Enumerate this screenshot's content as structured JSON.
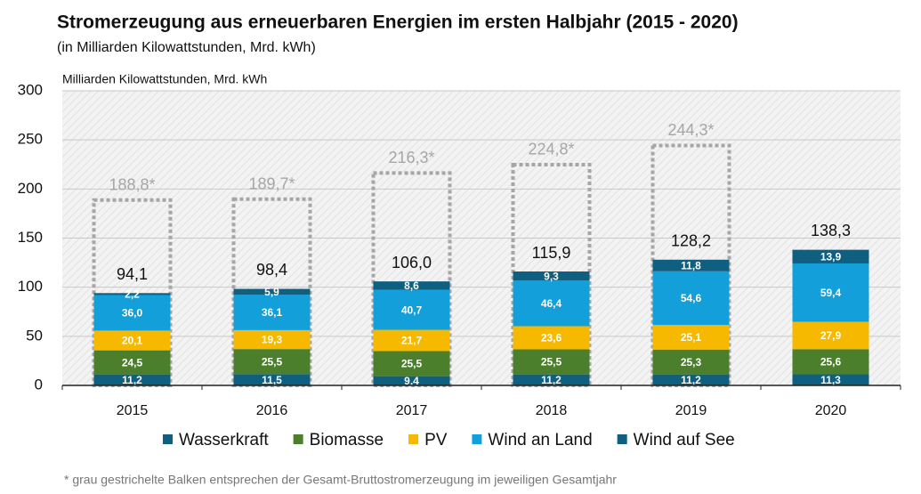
{
  "chart_data": {
    "type": "bar",
    "stacked": true,
    "title": "Stromerzeugung aus erneuerbaren Energien im ersten Halbjahr (2015 - 2020)",
    "subtitle": "(in Milliarden Kilowattstunden, Mrd. kWh)",
    "y_label": "Milliarden Kilowattstunden, Mrd. kWh",
    "footnote": "* grau gestrichelte Balken entsprechen der Gesamt-Bruttostromerzeugung im jeweiligen Gesamtjahr",
    "categories": [
      "2015",
      "2016",
      "2017",
      "2018",
      "2019",
      "2020"
    ],
    "series": [
      {
        "name": "Wasserkraft",
        "color": "#0f5f80",
        "values": [
          11.2,
          11.5,
          9.4,
          11.2,
          11.2,
          11.3
        ],
        "value_labels": [
          "11,2",
          "11,5",
          "9,4",
          "11,2",
          "11,2",
          "11,3"
        ]
      },
      {
        "name": "Biomasse",
        "color": "#4b7f2c",
        "values": [
          24.5,
          25.5,
          25.5,
          25.5,
          25.3,
          25.6
        ],
        "value_labels": [
          "24,5",
          "25,5",
          "25,5",
          "25,5",
          "25,3",
          "25,6"
        ]
      },
      {
        "name": "PV",
        "color": "#f6b900",
        "values": [
          20.1,
          19.3,
          21.7,
          23.6,
          25.1,
          27.9
        ],
        "value_labels": [
          "20,1",
          "19,3",
          "21,7",
          "23,6",
          "25,1",
          "27,9"
        ]
      },
      {
        "name": "Wind an Land",
        "color": "#13a0da",
        "values": [
          36.0,
          36.1,
          40.7,
          46.4,
          54.6,
          59.4
        ],
        "value_labels": [
          "36,0",
          "36,1",
          "40,7",
          "46,4",
          "54,6",
          "59,4"
        ]
      },
      {
        "name": "Wind auf See",
        "color": "#0f5f80",
        "values": [
          2.2,
          5.9,
          8.6,
          9.3,
          11.8,
          13.9
        ],
        "value_labels": [
          "2,2",
          "5,9",
          "8,6",
          "9,3",
          "11,8",
          "13,9"
        ]
      }
    ],
    "totals": {
      "values": [
        94.1,
        98.4,
        106.0,
        115.9,
        128.2,
        138.3
      ],
      "value_labels": [
        "94,1",
        "98,4",
        "106,0",
        "115,9",
        "128,2",
        "138,3"
      ]
    },
    "gross_totals": {
      "color": "#a6a6a6",
      "values": [
        188.8,
        189.7,
        216.3,
        224.8,
        244.3,
        null
      ],
      "value_labels": [
        "188,8*",
        "189,7*",
        "216,3*",
        "224,8*",
        "244,3*",
        null
      ]
    },
    "ylim": [
      0,
      300
    ],
    "yticks": [
      0,
      50,
      100,
      150,
      200,
      250,
      300
    ],
    "grid": true
  }
}
